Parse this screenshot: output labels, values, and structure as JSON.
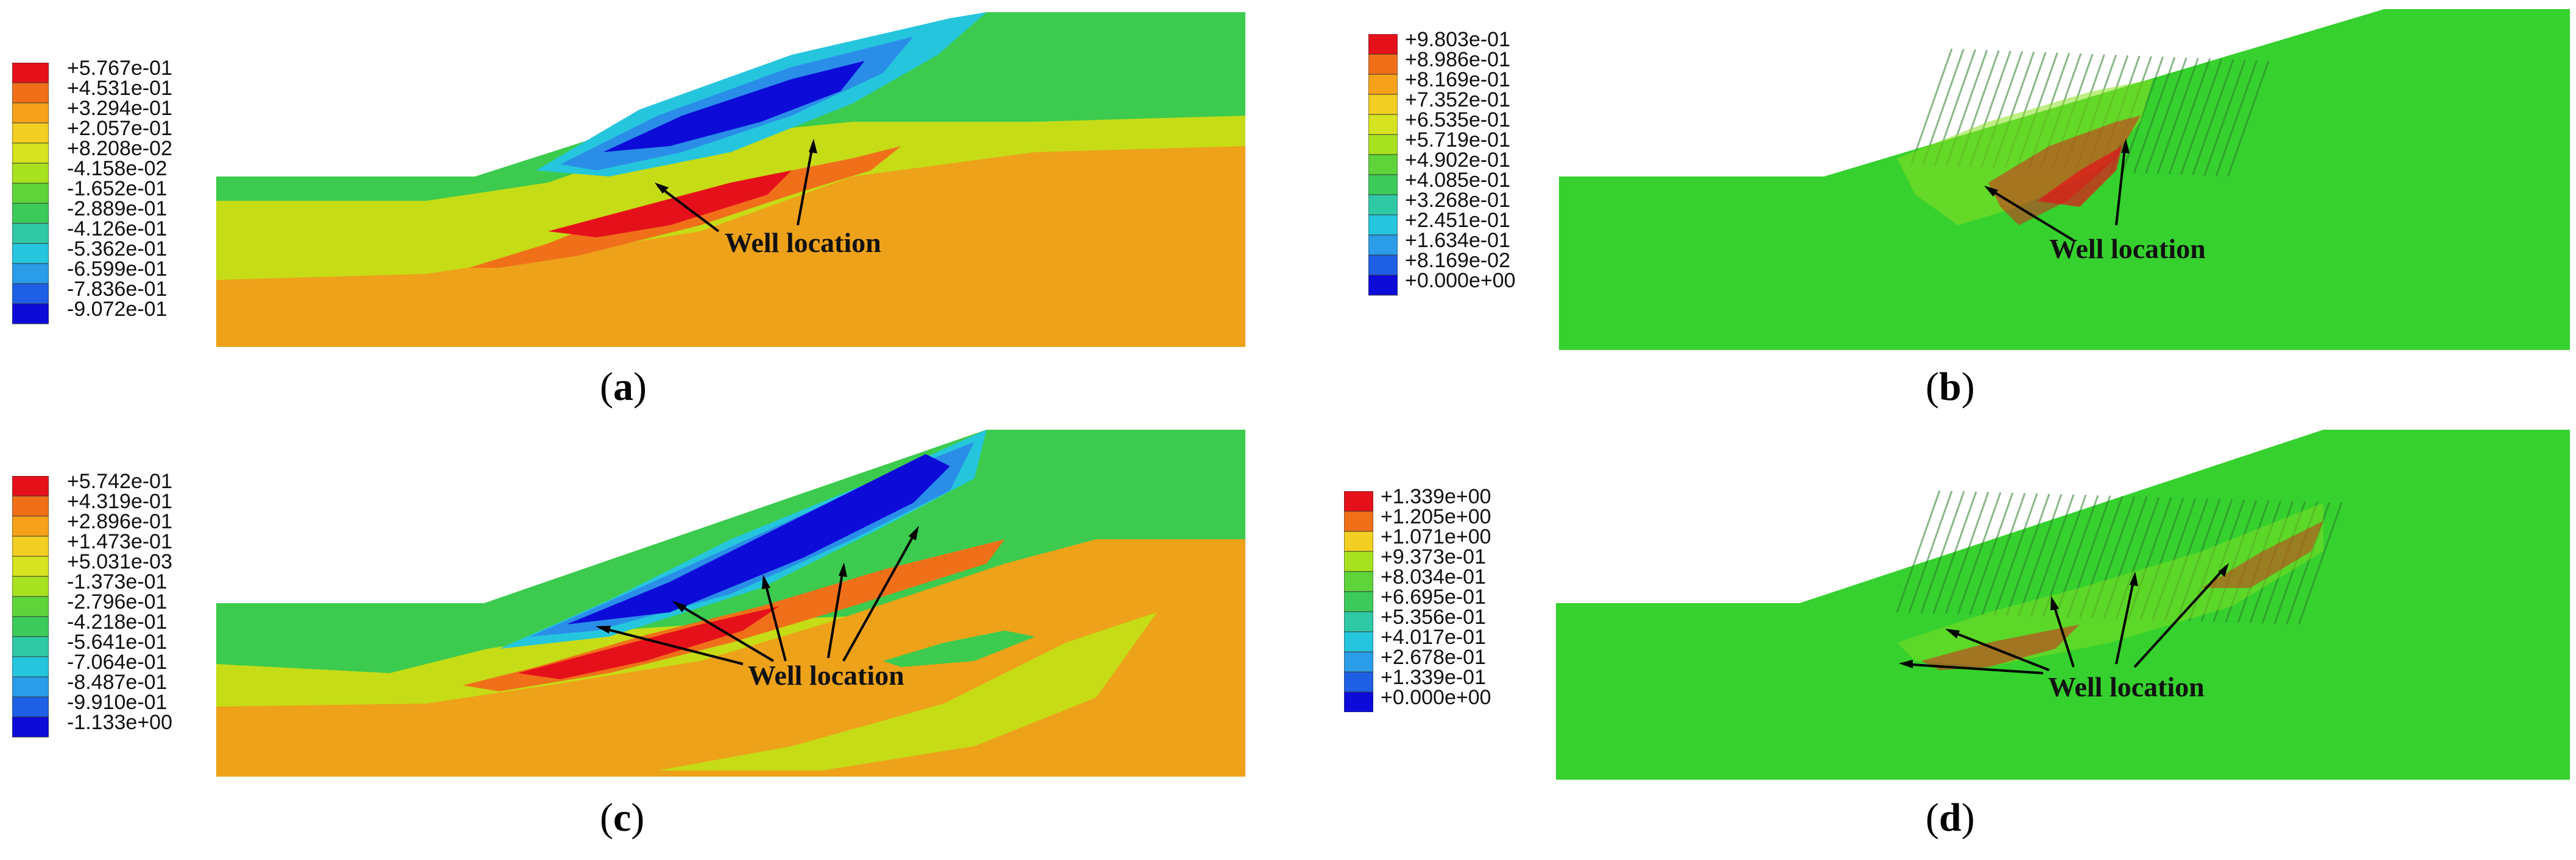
{
  "panels": [
    {
      "id": "a",
      "caption": "a",
      "annotation": "Well location",
      "legend": [
        "+5.767e-01",
        "+4.531e-01",
        "+3.294e-01",
        "+2.057e-01",
        "+8.208e-02",
        "-4.158e-02",
        "-1.652e-01",
        "-2.889e-01",
        "-4.126e-01",
        "-5.362e-01",
        "-6.599e-01",
        "-7.836e-01",
        "-9.072e-01"
      ]
    },
    {
      "id": "b",
      "caption": "b",
      "annotation": "Well location",
      "legend": [
        "+9.803e-01",
        "+8.986e-01",
        "+8.169e-01",
        "+7.352e-01",
        "+6.535e-01",
        "+5.719e-01",
        "+4.902e-01",
        "+4.085e-01",
        "+3.268e-01",
        "+2.451e-01",
        "+1.634e-01",
        "+8.169e-02",
        "+0.000e+00"
      ]
    },
    {
      "id": "c",
      "caption": "c",
      "annotation": "Well location",
      "legend": [
        "+5.742e-01",
        "+4.319e-01",
        "+2.896e-01",
        "+1.473e-01",
        "+5.031e-03",
        "-1.373e-01",
        "-2.796e-01",
        "-4.218e-01",
        "-5.641e-01",
        "-7.064e-01",
        "-8.487e-01",
        "-9.910e-01",
        "-1.133e+00"
      ]
    },
    {
      "id": "d",
      "caption": "d",
      "annotation": "Well location",
      "legend": [
        "+1.339e+00",
        "+1.205e+00",
        "+1.071e+00",
        "+9.373e-01",
        "+8.034e-01",
        "+6.695e-01",
        "+5.356e-01",
        "+4.017e-01",
        "+2.678e-01",
        "+1.339e-01",
        "+0.000e+00"
      ]
    }
  ],
  "legend_colors": [
    "#e5111a",
    "#f0701a",
    "#f5a21a",
    "#f2cf22",
    "#d6e320",
    "#a8e21e",
    "#5ed43a",
    "#3ccb5a",
    "#30c9a6",
    "#25c6dd",
    "#2a9ce8",
    "#1e5fe4",
    "#0d0bd8"
  ],
  "legend_colors_11": [
    "#e5111a",
    "#f0701a",
    "#f2cf22",
    "#a8e21e",
    "#5ed43a",
    "#3ccb5a",
    "#30c9a6",
    "#25c6dd",
    "#2a9ce8",
    "#1e5fe4",
    "#0d0bd8"
  ]
}
